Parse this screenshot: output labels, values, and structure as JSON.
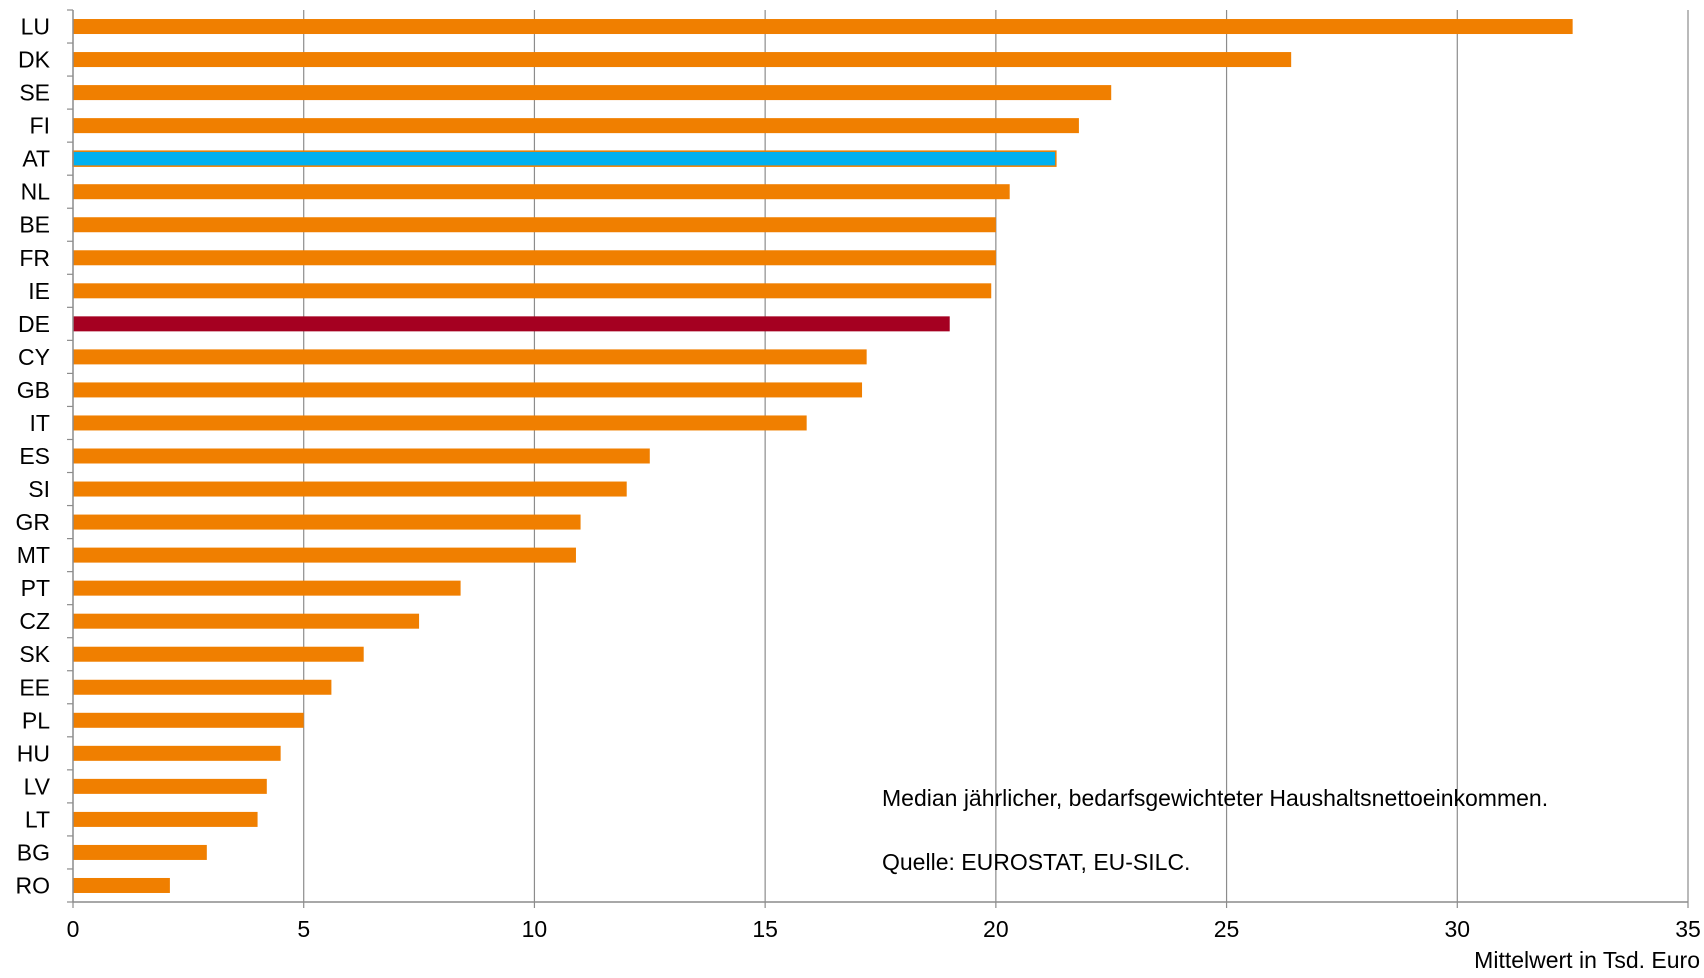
{
  "chart_data": {
    "type": "bar",
    "orientation": "horizontal",
    "categories": [
      "LU",
      "DK",
      "SE",
      "FI",
      "AT",
      "NL",
      "BE",
      "FR",
      "IE",
      "DE",
      "CY",
      "GB",
      "IT",
      "ES",
      "SI",
      "GR",
      "MT",
      "PT",
      "CZ",
      "SK",
      "EE",
      "PL",
      "HU",
      "LV",
      "LT",
      "BG",
      "RO"
    ],
    "values": [
      32.5,
      26.4,
      22.5,
      21.8,
      21.3,
      20.3,
      20.0,
      20.0,
      19.9,
      19.0,
      17.2,
      17.1,
      15.9,
      12.5,
      12.0,
      11.0,
      10.9,
      8.4,
      7.5,
      6.3,
      5.6,
      5.0,
      4.5,
      4.2,
      4.0,
      2.9,
      2.1
    ],
    "colors": {
      "default": "#F07F00",
      "highlight": {
        "AT": "#00B0F0",
        "DE": "#A50021"
      }
    },
    "xlabel": "Mittelwert in Tsd. Euro",
    "xlim": [
      0,
      35
    ],
    "xticks": [
      0,
      5,
      10,
      15,
      20,
      25,
      30,
      35
    ],
    "grid": "vertical",
    "annotations": [
      "Median jährlicher, bedarfsgewichteter Haushaltsnettoeinkommen.",
      "Quelle: EUROSTAT, EU-SILC."
    ]
  }
}
